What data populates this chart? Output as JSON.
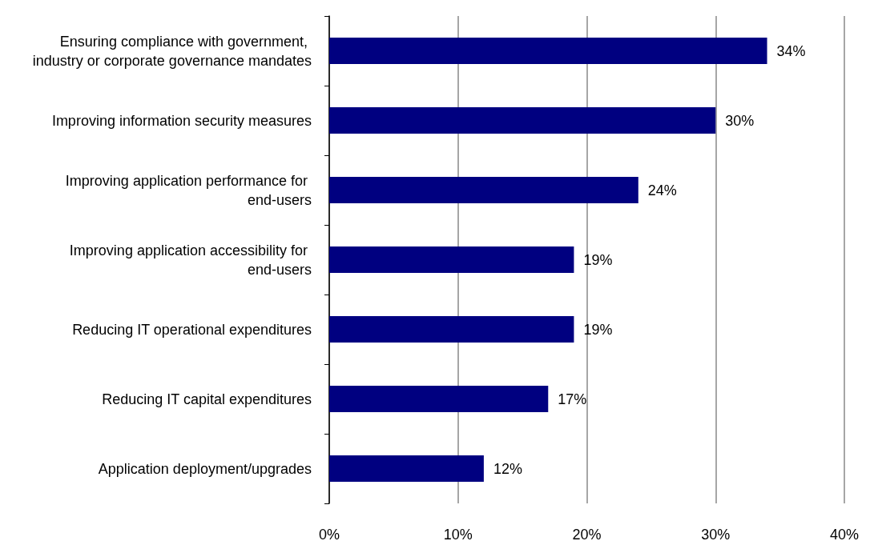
{
  "chart_data": {
    "type": "bar",
    "orientation": "horizontal",
    "categories": [
      "Ensuring compliance with government, industry or corporate governance mandates",
      "Improving information security measures",
      "Improving application performance for end-users",
      "Improving application accessibility for end-users",
      "Reducing IT operational expenditures",
      "Reducing IT capital expenditures",
      "Application deployment/upgrades"
    ],
    "values": [
      34,
      30,
      24,
      19,
      19,
      17,
      12
    ],
    "value_labels": [
      "34%",
      "30%",
      "24%",
      "19%",
      "19%",
      "17%",
      "12%"
    ],
    "color": "#000080",
    "xlim": [
      0,
      40
    ],
    "xticks": [
      {
        "value": 0,
        "label": "0%"
      },
      {
        "value": 10,
        "label": "10%"
      },
      {
        "value": 20,
        "label": "20%"
      },
      {
        "value": 30,
        "label": "30%"
      },
      {
        "value": 40,
        "label": "40%"
      }
    ],
    "grid": "x"
  }
}
